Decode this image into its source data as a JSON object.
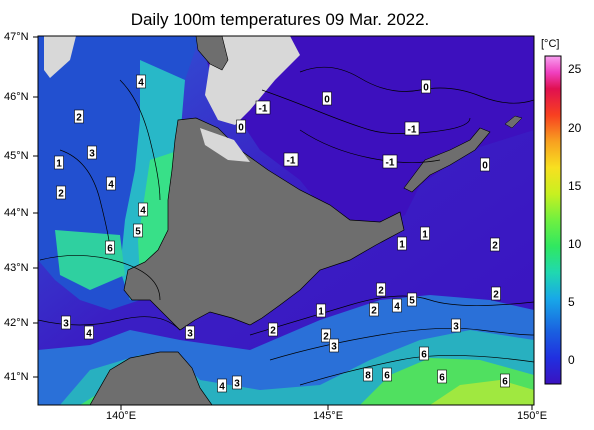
{
  "title": "Daily 100m temperatures 09 Mar. 2022.",
  "lat_labels": [
    "47°N",
    "46°N",
    "45°N",
    "44°N",
    "43°N",
    "42°N",
    "41°N"
  ],
  "lon_labels": [
    "140°E",
    "145°E",
    "150°E"
  ],
  "colorbar": {
    "unit": "[°C]",
    "ticks": [
      "25",
      "20",
      "15",
      "10",
      "5",
      "0"
    ],
    "range": [
      -2,
      26
    ],
    "colors": [
      "#3a12c0",
      "#2030e0",
      "#1a60e0",
      "#18a8e8",
      "#20d8b0",
      "#30e860",
      "#70f040",
      "#c8f020",
      "#f8e020",
      "#f8a020",
      "#f84020",
      "#e01050",
      "#f040c0",
      "#f8a0f0"
    ]
  },
  "map": {
    "land_color": "#6e6e6e",
    "ice_color": "#d8d8d8",
    "contour_labels": [
      {
        "text": "4"
      },
      {
        "text": "2"
      },
      {
        "text": "1"
      },
      {
        "text": "3"
      },
      {
        "text": "2"
      },
      {
        "text": "4"
      },
      {
        "text": "4"
      },
      {
        "text": "5"
      },
      {
        "text": "6"
      },
      {
        "text": "3"
      },
      {
        "text": "4"
      },
      {
        "text": "3"
      },
      {
        "text": "4"
      },
      {
        "text": "3"
      },
      {
        "text": "-1"
      },
      {
        "text": "0"
      },
      {
        "text": "-1"
      },
      {
        "text": "0"
      },
      {
        "text": "0"
      },
      {
        "text": "-1"
      },
      {
        "text": "-1"
      },
      {
        "text": "0"
      },
      {
        "text": "1"
      },
      {
        "text": "1"
      },
      {
        "text": "2"
      },
      {
        "text": "2"
      },
      {
        "text": "2"
      },
      {
        "text": "1"
      },
      {
        "text": "2"
      },
      {
        "text": "4"
      },
      {
        "text": "5"
      },
      {
        "text": "2"
      },
      {
        "text": "3"
      },
      {
        "text": "2"
      },
      {
        "text": "3"
      },
      {
        "text": "6"
      },
      {
        "text": "8"
      },
      {
        "text": "6"
      },
      {
        "text": "6"
      },
      {
        "text": "6"
      }
    ]
  }
}
